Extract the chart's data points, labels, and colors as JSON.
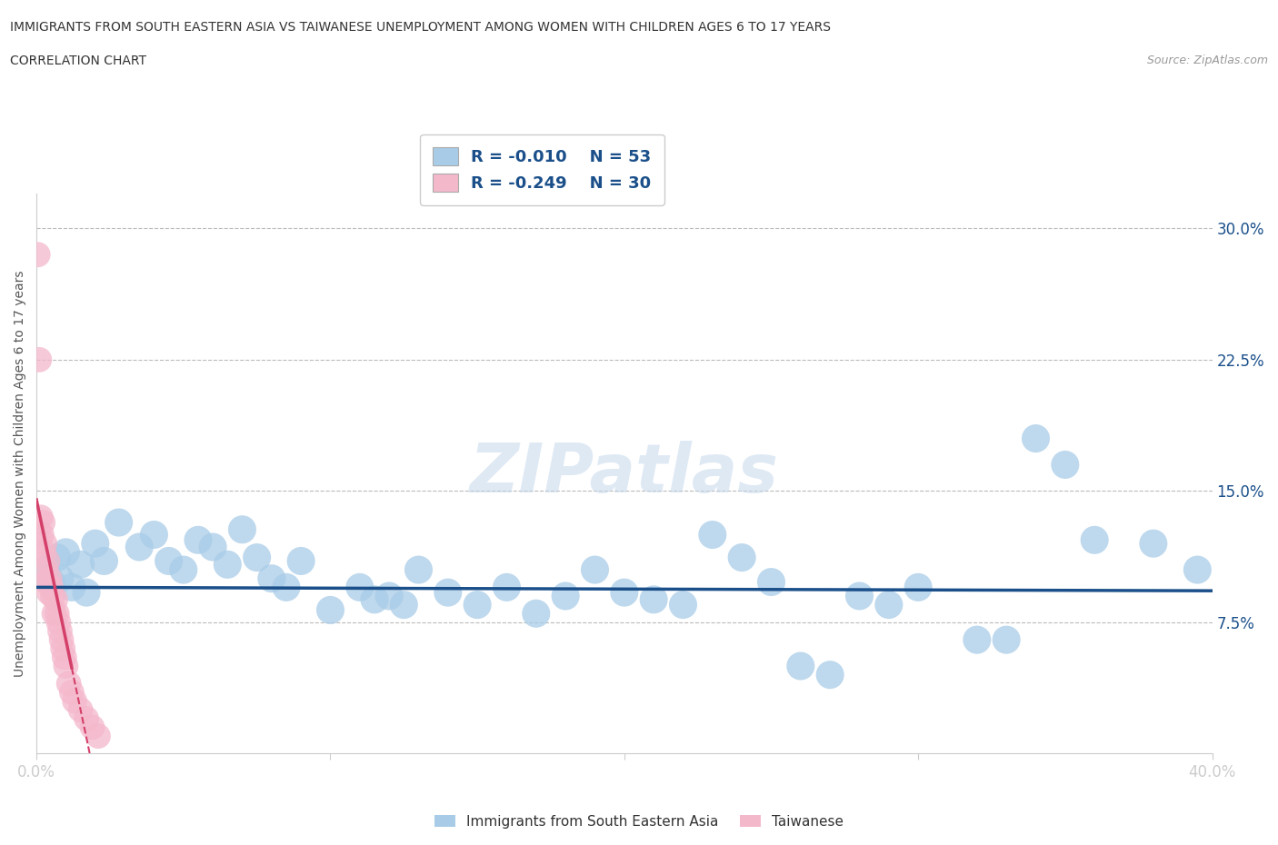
{
  "title_line1": "IMMIGRANTS FROM SOUTH EASTERN ASIA VS TAIWANESE UNEMPLOYMENT AMONG WOMEN WITH CHILDREN AGES 6 TO 17 YEARS",
  "title_line2": "CORRELATION CHART",
  "source": "Source: ZipAtlas.com",
  "ylabel": "Unemployment Among Women with Children Ages 6 to 17 years",
  "xlim": [
    0.0,
    40.0
  ],
  "ylim": [
    0.0,
    32.0
  ],
  "ytick_positions": [
    7.5,
    15.0,
    22.5,
    30.0
  ],
  "ytick_labels": [
    "7.5%",
    "15.0%",
    "22.5%",
    "30.0%"
  ],
  "legend_r1": "R = -0.010",
  "legend_n1": "N = 53",
  "legend_r2": "R = -0.249",
  "legend_n2": "N = 30",
  "blue_color": "#a8cce8",
  "pink_color": "#f4b8cb",
  "blue_line_color": "#1a4f8a",
  "pink_line_color": "#d4406a",
  "legend_text_color": "#1a4f8a",
  "watermark": "ZIPatlas",
  "blue_scatter": [
    [
      0.3,
      10.5
    ],
    [
      0.5,
      9.8
    ],
    [
      0.7,
      11.2
    ],
    [
      0.8,
      10.0
    ],
    [
      1.0,
      11.5
    ],
    [
      1.2,
      9.5
    ],
    [
      1.5,
      10.8
    ],
    [
      1.7,
      9.2
    ],
    [
      2.0,
      12.0
    ],
    [
      2.3,
      11.0
    ],
    [
      2.8,
      13.2
    ],
    [
      3.5,
      11.8
    ],
    [
      4.0,
      12.5
    ],
    [
      4.5,
      11.0
    ],
    [
      5.0,
      10.5
    ],
    [
      5.5,
      12.2
    ],
    [
      6.0,
      11.8
    ],
    [
      6.5,
      10.8
    ],
    [
      7.0,
      12.8
    ],
    [
      7.5,
      11.2
    ],
    [
      8.0,
      10.0
    ],
    [
      8.5,
      9.5
    ],
    [
      9.0,
      11.0
    ],
    [
      10.0,
      8.2
    ],
    [
      11.0,
      9.5
    ],
    [
      11.5,
      8.8
    ],
    [
      12.0,
      9.0
    ],
    [
      12.5,
      8.5
    ],
    [
      13.0,
      10.5
    ],
    [
      14.0,
      9.2
    ],
    [
      15.0,
      8.5
    ],
    [
      16.0,
      9.5
    ],
    [
      17.0,
      8.0
    ],
    [
      18.0,
      9.0
    ],
    [
      19.0,
      10.5
    ],
    [
      20.0,
      9.2
    ],
    [
      21.0,
      8.8
    ],
    [
      22.0,
      8.5
    ],
    [
      23.0,
      12.5
    ],
    [
      24.0,
      11.2
    ],
    [
      25.0,
      9.8
    ],
    [
      26.0,
      5.0
    ],
    [
      27.0,
      4.5
    ],
    [
      28.0,
      9.0
    ],
    [
      29.0,
      8.5
    ],
    [
      30.0,
      9.5
    ],
    [
      32.0,
      6.5
    ],
    [
      33.0,
      6.5
    ],
    [
      34.0,
      18.0
    ],
    [
      35.0,
      16.5
    ],
    [
      36.0,
      12.2
    ],
    [
      38.0,
      12.0
    ],
    [
      39.5,
      10.5
    ]
  ],
  "pink_scatter": [
    [
      0.05,
      28.5
    ],
    [
      0.1,
      22.5
    ],
    [
      0.15,
      13.5
    ],
    [
      0.18,
      12.5
    ],
    [
      0.22,
      13.2
    ],
    [
      0.25,
      11.5
    ],
    [
      0.28,
      12.0
    ],
    [
      0.32,
      10.5
    ],
    [
      0.35,
      9.8
    ],
    [
      0.38,
      11.0
    ],
    [
      0.42,
      9.2
    ],
    [
      0.45,
      10.0
    ],
    [
      0.5,
      9.5
    ],
    [
      0.55,
      9.0
    ],
    [
      0.6,
      8.0
    ],
    [
      0.65,
      8.8
    ],
    [
      0.7,
      8.0
    ],
    [
      0.75,
      7.5
    ],
    [
      0.8,
      7.0
    ],
    [
      0.85,
      6.5
    ],
    [
      0.9,
      6.0
    ],
    [
      0.95,
      5.5
    ],
    [
      1.0,
      5.0
    ],
    [
      1.1,
      4.0
    ],
    [
      1.2,
      3.5
    ],
    [
      1.3,
      3.0
    ],
    [
      1.5,
      2.5
    ],
    [
      1.7,
      2.0
    ],
    [
      1.9,
      1.5
    ],
    [
      2.1,
      1.0
    ]
  ],
  "blue_line_y_intercept": 9.5,
  "blue_line_slope": -0.005,
  "pink_line_y_intercept": 14.5,
  "pink_line_slope": -8.0
}
